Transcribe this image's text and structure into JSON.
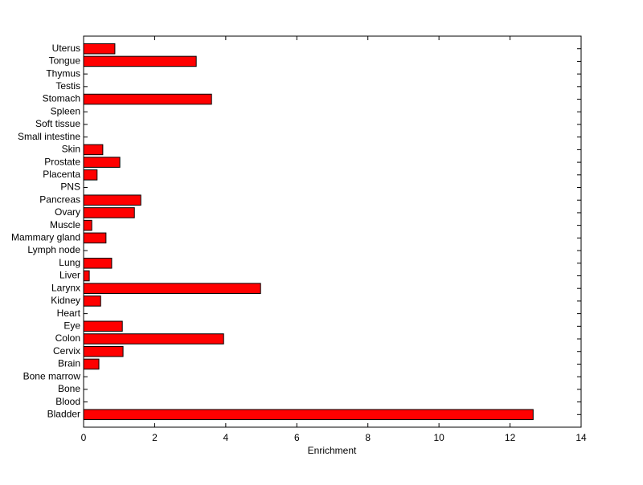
{
  "chart_data": {
    "type": "barh",
    "xlabel": "Enrichment",
    "categories": [
      "Bladder",
      "Blood",
      "Bone",
      "Bone marrow",
      "Brain",
      "Cervix",
      "Colon",
      "Eye",
      "Heart",
      "Kidney",
      "Larynx",
      "Liver",
      "Lung",
      "Lymph node",
      "Mammary gland",
      "Muscle",
      "Ovary",
      "Pancreas",
      "PNS",
      "Placenta",
      "Prostate",
      "Skin",
      "Small intestine",
      "Soft tissue",
      "Spleen",
      "Stomach",
      "Testis",
      "Thymus",
      "Tongue",
      "Uterus"
    ],
    "values": [
      12.65,
      0,
      0,
      0,
      0.43,
      1.11,
      3.94,
      1.09,
      0,
      0.48,
      4.98,
      0.16,
      0.79,
      0,
      0.63,
      0.23,
      1.43,
      1.61,
      0,
      0.38,
      1.02,
      0.54,
      0,
      0,
      0,
      3.6,
      0,
      0,
      3.17,
      0.88
    ],
    "color": "#ff0000",
    "xlim": [
      0,
      14
    ],
    "xticks": [
      0,
      2,
      4,
      6,
      8,
      10,
      12,
      14
    ]
  }
}
